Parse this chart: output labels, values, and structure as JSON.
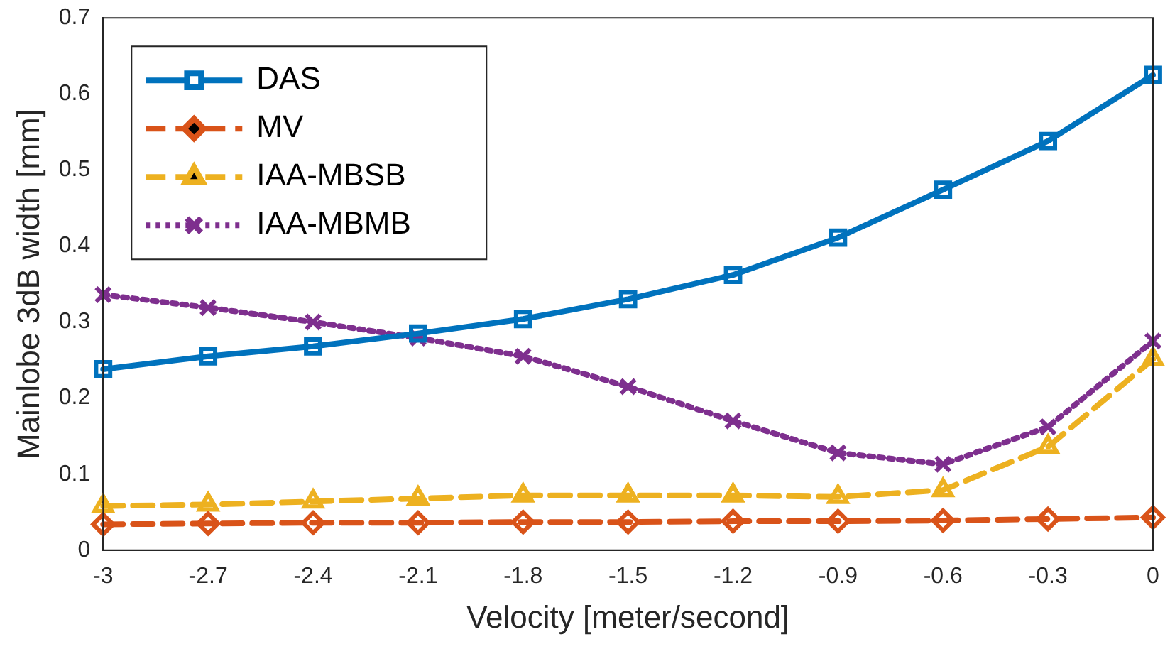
{
  "chart_data": {
    "type": "line",
    "xlabel": "Velocity [meter/second]",
    "ylabel": "Mainlobe 3dB width [mm]",
    "x": [
      -3,
      -2.7,
      -2.4,
      -2.1,
      -1.8,
      -1.5,
      -1.2,
      -0.9,
      -0.6,
      -0.3,
      0
    ],
    "series": [
      {
        "name": "DAS",
        "color": "#0072bd",
        "marker": "square",
        "line_style": "solid",
        "values": [
          0.238,
          0.255,
          0.268,
          0.285,
          0.304,
          0.33,
          0.362,
          0.411,
          0.474,
          0.538,
          0.625
        ]
      },
      {
        "name": "MV",
        "color": "#d95319",
        "marker": "diamond",
        "line_style": "dashed",
        "values": [
          0.034,
          0.035,
          0.036,
          0.036,
          0.037,
          0.037,
          0.038,
          0.038,
          0.039,
          0.041,
          0.043
        ]
      },
      {
        "name": "IAA-MBSB",
        "color": "#edb120",
        "marker": "triangle",
        "line_style": "dashed",
        "values": [
          0.058,
          0.06,
          0.064,
          0.068,
          0.072,
          0.072,
          0.072,
          0.07,
          0.079,
          0.136,
          0.251
        ]
      },
      {
        "name": "IAA-MBMB",
        "color": "#7e2f8e",
        "marker": "cross",
        "line_style": "dotted",
        "values": [
          0.336,
          0.319,
          0.3,
          0.279,
          0.255,
          0.215,
          0.17,
          0.128,
          0.113,
          0.162,
          0.275
        ]
      }
    ],
    "xlim": [
      -3,
      0
    ],
    "xticks": [
      -3,
      -2.7,
      -2.4,
      -2.1,
      -1.8,
      -1.5,
      -1.2,
      -0.9,
      -0.6,
      -0.3,
      0
    ],
    "ylim": [
      0,
      0.7
    ],
    "yticks": [
      0,
      0.1,
      0.2,
      0.3,
      0.4,
      0.5,
      0.6,
      0.7
    ],
    "grid": false,
    "legend": "top left"
  }
}
